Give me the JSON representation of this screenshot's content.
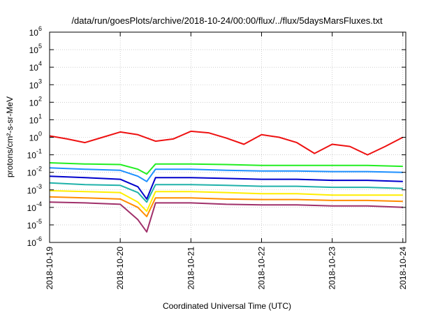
{
  "chart_data": {
    "type": "line",
    "title": "/data/run/goesPlots/archive/2018-10-24/00:00/flux/../flux/5daysMarsFluxes.txt",
    "xlabel": "Coordinated Universal Time (UTC)",
    "ylabel": "protons/cm²-s-sr-MeV",
    "yscale": "log",
    "ylim": [
      1e-06,
      1000000.0
    ],
    "xlim": [
      "2018-10-19",
      "2018-10-24T01:00"
    ],
    "grid": true,
    "x_ticks": [
      "2018-10-19",
      "2018-10-20",
      "2018-10-21",
      "2018-10-22",
      "2018-10-23",
      "2018-10-24"
    ],
    "y_ticks": [
      {
        "base": "10",
        "exp": "-6"
      },
      {
        "base": "10",
        "exp": "-5"
      },
      {
        "base": "10",
        "exp": "-4"
      },
      {
        "base": "10",
        "exp": "-3"
      },
      {
        "base": "10",
        "exp": "-2"
      },
      {
        "base": "10",
        "exp": "-1"
      },
      {
        "base": "10",
        "exp": "0"
      },
      {
        "base": "10",
        "exp": "1"
      },
      {
        "base": "10",
        "exp": "2"
      },
      {
        "base": "10",
        "exp": "3"
      },
      {
        "base": "10",
        "exp": "4"
      },
      {
        "base": "10",
        "exp": "5"
      },
      {
        "base": "10",
        "exp": "6"
      }
    ],
    "series": [
      {
        "color": "#ee1111",
        "x": [
          "2018-10-19T00:00",
          "2018-10-19T06:00",
          "2018-10-19T12:00",
          "2018-10-19T18:00",
          "2018-10-20T00:00",
          "2018-10-20T06:00",
          "2018-10-20T12:00",
          "2018-10-20T18:00",
          "2018-10-21T00:00",
          "2018-10-21T06:00",
          "2018-10-21T12:00",
          "2018-10-21T18:00",
          "2018-10-22T00:00",
          "2018-10-22T06:00",
          "2018-10-22T12:00",
          "2018-10-22T18:00",
          "2018-10-23T00:00",
          "2018-10-23T06:00",
          "2018-10-23T12:00",
          "2018-10-23T18:00",
          "2018-10-24T00:00"
        ],
        "y": [
          1.2,
          0.8,
          0.5,
          1.0,
          2.0,
          1.4,
          0.6,
          0.8,
          2.2,
          1.8,
          0.9,
          0.4,
          1.4,
          1.0,
          0.5,
          0.12,
          0.4,
          0.3,
          0.1,
          0.3,
          1.0
        ]
      },
      {
        "color": "#22ee22",
        "x": [
          "2018-10-19T00:00",
          "2018-10-19T12:00",
          "2018-10-20T00:00",
          "2018-10-20T06:00",
          "2018-10-20T09:00",
          "2018-10-20T12:00",
          "2018-10-20T18:00",
          "2018-10-21T00:00",
          "2018-10-21T12:00",
          "2018-10-22T00:00",
          "2018-10-22T12:00",
          "2018-10-23T00:00",
          "2018-10-23T12:00",
          "2018-10-24T00:00"
        ],
        "y": [
          0.035,
          0.03,
          0.028,
          0.015,
          0.008,
          0.03,
          0.03,
          0.03,
          0.028,
          0.025,
          0.025,
          0.025,
          0.025,
          0.022
        ]
      },
      {
        "color": "#1e90ff",
        "x": [
          "2018-10-19T00:00",
          "2018-10-19T12:00",
          "2018-10-20T00:00",
          "2018-10-20T06:00",
          "2018-10-20T09:00",
          "2018-10-20T12:00",
          "2018-10-20T18:00",
          "2018-10-21T00:00",
          "2018-10-21T12:00",
          "2018-10-22T00:00",
          "2018-10-22T12:00",
          "2018-10-23T00:00",
          "2018-10-23T12:00",
          "2018-10-24T00:00"
        ],
        "y": [
          0.018,
          0.015,
          0.013,
          0.006,
          0.003,
          0.015,
          0.015,
          0.015,
          0.013,
          0.012,
          0.012,
          0.011,
          0.011,
          0.01
        ]
      },
      {
        "color": "#0000cc",
        "x": [
          "2018-10-19T00:00",
          "2018-10-19T12:00",
          "2018-10-20T00:00",
          "2018-10-20T06:00",
          "2018-10-20T09:00",
          "2018-10-20T12:00",
          "2018-10-20T18:00",
          "2018-10-21T00:00",
          "2018-10-21T12:00",
          "2018-10-22T00:00",
          "2018-10-22T12:00",
          "2018-10-23T00:00",
          "2018-10-23T12:00",
          "2018-10-24T00:00"
        ],
        "y": [
          0.006,
          0.005,
          0.004,
          0.0015,
          0.0003,
          0.005,
          0.005,
          0.005,
          0.0045,
          0.004,
          0.004,
          0.0035,
          0.0035,
          0.003
        ]
      },
      {
        "color": "#20b2aa",
        "x": [
          "2018-10-19T00:00",
          "2018-10-19T12:00",
          "2018-10-20T00:00",
          "2018-10-20T06:00",
          "2018-10-20T09:00",
          "2018-10-20T12:00",
          "2018-10-20T18:00",
          "2018-10-21T00:00",
          "2018-10-21T12:00",
          "2018-10-22T00:00",
          "2018-10-22T12:00",
          "2018-10-23T00:00",
          "2018-10-23T12:00",
          "2018-10-24T00:00"
        ],
        "y": [
          0.0025,
          0.002,
          0.0018,
          0.0007,
          0.0002,
          0.002,
          0.002,
          0.002,
          0.0018,
          0.0016,
          0.0016,
          0.0014,
          0.0014,
          0.0012
        ]
      },
      {
        "color": "#ffee00",
        "x": [
          "2018-10-19T00:00",
          "2018-10-19T12:00",
          "2018-10-20T00:00",
          "2018-10-20T06:00",
          "2018-10-20T09:00",
          "2018-10-20T12:00",
          "2018-10-20T18:00",
          "2018-10-21T00:00",
          "2018-10-21T12:00",
          "2018-10-22T00:00",
          "2018-10-22T12:00",
          "2018-10-23T00:00",
          "2018-10-23T12:00",
          "2018-10-24T00:00"
        ],
        "y": [
          0.0009,
          0.0008,
          0.0007,
          0.0002,
          6e-05,
          0.0008,
          0.0008,
          0.0008,
          0.0007,
          0.0006,
          0.0006,
          0.0005,
          0.0005,
          0.0005
        ]
      },
      {
        "color": "#ff8c00",
        "x": [
          "2018-10-19T00:00",
          "2018-10-19T12:00",
          "2018-10-20T00:00",
          "2018-10-20T06:00",
          "2018-10-20T09:00",
          "2018-10-20T12:00",
          "2018-10-20T18:00",
          "2018-10-21T00:00",
          "2018-10-21T12:00",
          "2018-10-22T00:00",
          "2018-10-22T12:00",
          "2018-10-23T00:00",
          "2018-10-23T12:00",
          "2018-10-24T00:00"
        ],
        "y": [
          0.0004,
          0.00035,
          0.0003,
          0.0001,
          3e-05,
          0.00035,
          0.00035,
          0.00035,
          0.0003,
          0.00028,
          0.00028,
          0.00025,
          0.00025,
          0.00022
        ]
      },
      {
        "color": "#a0306a",
        "x": [
          "2018-10-19T00:00",
          "2018-10-19T12:00",
          "2018-10-20T00:00",
          "2018-10-20T06:00",
          "2018-10-20T09:00",
          "2018-10-20T12:00",
          "2018-10-20T18:00",
          "2018-10-21T00:00",
          "2018-10-21T12:00",
          "2018-10-22T00:00",
          "2018-10-22T12:00",
          "2018-10-23T00:00",
          "2018-10-23T12:00",
          "2018-10-24T00:00"
        ],
        "y": [
          0.0002,
          0.00018,
          0.00015,
          2e-05,
          4e-06,
          0.00018,
          0.00018,
          0.00018,
          0.00015,
          0.00014,
          0.00014,
          0.00012,
          0.00012,
          0.0001
        ]
      }
    ]
  }
}
